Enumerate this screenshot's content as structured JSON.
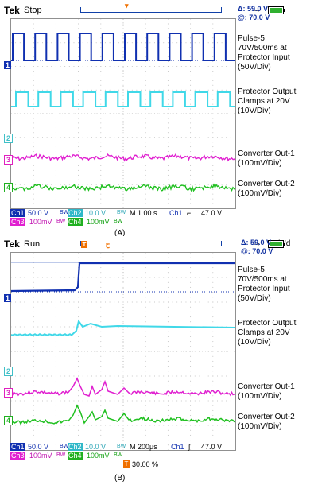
{
  "panelA": {
    "brand": "Tek",
    "state": "Stop",
    "measure": {
      "delta": "Δ: 59.0 V",
      "at": "@: 70.0 V"
    },
    "markers": {
      "ch1": "1",
      "ch2": "2",
      "ch3": "3",
      "ch4": "4"
    },
    "labels": {
      "ch1": [
        "Pulse-5",
        "70V/500ms at",
        "Protector Input",
        "(50V/Div)"
      ],
      "ch2": [
        "Protector Output",
        "Clamps at 20V",
        "(10V/Div)"
      ],
      "ch3": [
        "Converter Out-1",
        "(100mV/Div)"
      ],
      "ch4": [
        "Converter Out-2",
        "(100mV/Div)"
      ]
    },
    "status": {
      "ch1": "Ch1",
      "ch1_scale": "50.0 V",
      "ch2": "Ch2",
      "ch2_scale": "10.0 V",
      "ch3": "Ch3",
      "ch3_scale": "100mV",
      "ch4": "Ch4",
      "ch4_scale": "100mV",
      "bw": "BW",
      "timebase": "M 1.00 s",
      "trig_src": "Ch1",
      "trig_slope": "⌐",
      "trig_level": "47.0 V"
    },
    "caption": "(A)"
  },
  "panelB": {
    "brand": "Tek",
    "state": "Run",
    "trigd": "Trig'd",
    "measure": {
      "delta": "Δ: 59.0 V",
      "at": "@: 70.0 V"
    },
    "markers": {
      "ch1": "1",
      "ch2": "2",
      "ch3": "3",
      "ch4": "4"
    },
    "labels": {
      "ch1": [
        "Pulse-5",
        "70V/500ms at",
        "Protector Input",
        "(50V/Div)"
      ],
      "ch2": [
        "Protector Output",
        "Clamps at 20V",
        "(10V/Div)"
      ],
      "ch3": [
        "Converter Out-1",
        "(100mV/Div)"
      ],
      "ch4": [
        "Converter Out-2",
        "(100mV/Div)"
      ]
    },
    "status": {
      "ch1": "Ch1",
      "ch1_scale": "50.0 V",
      "ch2": "Ch2",
      "ch2_scale": "10.0 V",
      "ch3": "Ch3",
      "ch3_scale": "100mV",
      "ch4": "Ch4",
      "ch4_scale": "100mV",
      "bw": "BW",
      "timebase": "M 200μs",
      "trig_src": "Ch1",
      "trig_slope": "∫",
      "trig_level": "47.0 V",
      "trig_pos": "30.00 %"
    },
    "caption": "(B)"
  },
  "colors": {
    "ch1": "#1030b0",
    "ch2": "#40d8e8",
    "ch3": "#e020d0",
    "ch4": "#20c020",
    "grid": "#b8b8b8"
  }
}
